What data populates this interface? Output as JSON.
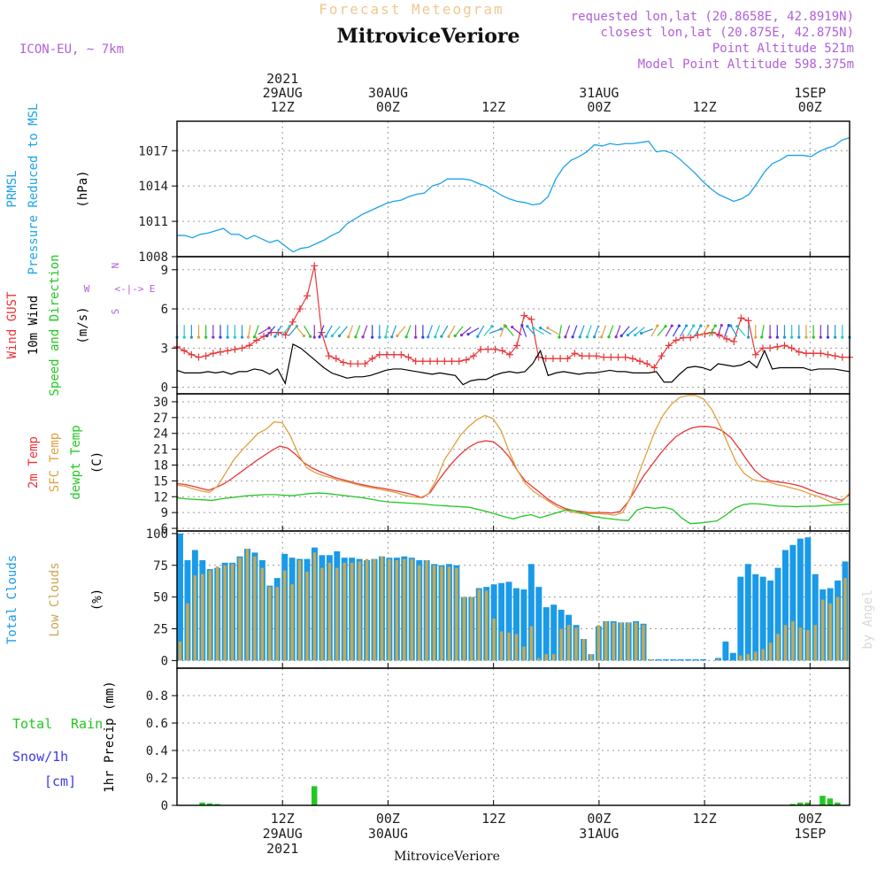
{
  "header": {
    "title_faded": "Forecast Meteogram",
    "title": "MitroviceVeriore",
    "model": "ICON-EU, ~ 7km",
    "requested": "requested lon,lat (20.8658E, 42.8919N)",
    "closest": "closest lon,lat (20.875E, 42.875N)",
    "altitude": "Point Altitude 521m",
    "model_altitude": "Model Point Altitude 598.375m",
    "bottom_title": "MitroviceVeriore",
    "watermark": "by Angel"
  },
  "colors": {
    "pressure": "#1aa3e8",
    "gust": "#e8363a",
    "wind10m": "#000000",
    "temp": "#e8363a",
    "sfc_temp": "#e0a040",
    "dewpt": "#22c822",
    "total_clouds": "#1a9ae8",
    "low_clouds": "#c8a850",
    "rain": "#22c822",
    "snow": "#3b3be8",
    "header_faded": "#f0c890",
    "header_info": "#b060d8"
  },
  "time_axis": {
    "top_ticks": [
      {
        "hour": 12,
        "lines": [
          "2021",
          "29AUG",
          "12Z"
        ]
      },
      {
        "hour": 24,
        "lines": [
          "30AUG",
          "00Z"
        ]
      },
      {
        "hour": 36,
        "lines": [
          "12Z"
        ]
      },
      {
        "hour": 48,
        "lines": [
          "31AUG",
          "00Z"
        ]
      },
      {
        "hour": 60,
        "lines": [
          "12Z"
        ]
      },
      {
        "hour": 72,
        "lines": [
          "1SEP",
          "00Z"
        ]
      }
    ],
    "bottom_ticks": [
      {
        "hour": 12,
        "lines": [
          "12Z",
          "29AUG",
          "2021"
        ]
      },
      {
        "hour": 24,
        "lines": [
          "00Z",
          "30AUG"
        ]
      },
      {
        "hour": 36,
        "lines": [
          "12Z"
        ]
      },
      {
        "hour": 48,
        "lines": [
          "00Z",
          "31AUG"
        ]
      },
      {
        "hour": 60,
        "lines": [
          "12Z"
        ]
      },
      {
        "hour": 72,
        "lines": [
          "00Z",
          "1SEP"
        ]
      }
    ],
    "range_hours": [
      0,
      76.5
    ],
    "step_hours": 1
  },
  "chart_data": [
    {
      "type": "line",
      "panel": "pressure",
      "ylabel_lines": [
        "PRMSL",
        "Pressure Reduced to MSL",
        "(hPa)"
      ],
      "ylim": [
        1008,
        1019.5
      ],
      "yticks": [
        1008,
        1011,
        1014,
        1017
      ],
      "series": [
        {
          "name": "PRMSL",
          "values": [
            1009.8,
            1009.8,
            1009.6,
            1009.9,
            1010.0,
            1010.2,
            1010.4,
            1009.9,
            1009.9,
            1009.5,
            1009.8,
            1009.5,
            1009.2,
            1009.4,
            1008.9,
            1008.4,
            1008.7,
            1008.8,
            1009.1,
            1009.4,
            1009.8,
            1010.1,
            1010.8,
            1011.2,
            1011.6,
            1011.9,
            1012.2,
            1012.5,
            1012.7,
            1012.8,
            1013.1,
            1013.3,
            1013.4,
            1014.0,
            1014.2,
            1014.6,
            1014.6,
            1014.6,
            1014.5,
            1014.2,
            1014.0,
            1013.6,
            1013.2,
            1012.9,
            1012.7,
            1012.6,
            1012.4,
            1012.5,
            1013.1,
            1014.6,
            1015.6,
            1016.2,
            1016.5,
            1016.9,
            1017.5,
            1017.4,
            1017.6,
            1017.5,
            1017.6,
            1017.6,
            1017.7,
            1017.8,
            1016.9,
            1017.0,
            1016.8,
            1016.3,
            1015.7,
            1015.1,
            1014.4,
            1013.8,
            1013.3,
            1013.0,
            1012.7,
            1012.9,
            1013.3,
            1014.2,
            1015.2,
            1015.9,
            1016.2,
            1016.6,
            1016.6,
            1016.6,
            1016.5,
            1016.9,
            1017.2,
            1017.4,
            1017.9,
            1018.1
          ]
        }
      ]
    },
    {
      "type": "line",
      "panel": "wind",
      "ylabel_lines": [
        "Wind GUST",
        "10m Wind",
        "Speed and Direction",
        "(m/s)"
      ],
      "ylim": [
        -0.5,
        10
      ],
      "yticks": [
        0,
        3,
        6,
        9
      ],
      "compass": {
        "n": "N",
        "s": "S",
        "e": "E",
        "w": "W",
        "arrows": "<-|->"
      },
      "series": [
        {
          "name": "Wind GUST",
          "values": [
            3.1,
            2.8,
            2.5,
            2.3,
            2.4,
            2.6,
            2.7,
            2.8,
            2.9,
            3.0,
            3.2,
            3.6,
            3.9,
            4.2,
            4.2,
            4.0,
            5.0,
            6.0,
            7.0,
            9.3,
            4.2,
            2.4,
            2.2,
            1.9,
            1.8,
            1.8,
            1.8,
            2.2,
            2.5,
            2.5,
            2.5,
            2.5,
            2.3,
            2.0,
            2.0,
            2.0,
            2.0,
            2.0,
            2.0,
            2.0,
            2.1,
            2.4,
            2.9,
            2.9,
            2.9,
            2.8,
            2.5,
            3.2,
            5.5,
            5.2,
            2.3,
            2.2,
            2.2,
            2.2,
            2.2,
            2.6,
            2.4,
            2.4,
            2.4,
            2.3,
            2.3,
            2.3,
            2.3,
            2.2,
            2.0,
            1.8,
            1.5,
            2.4,
            3.2,
            3.6,
            3.8,
            3.8,
            4.0,
            4.1,
            4.2,
            4.0,
            3.7,
            3.5,
            5.3,
            5.1,
            2.5,
            3.0,
            3.0,
            3.1,
            3.2,
            3.0,
            2.7,
            2.6,
            2.6,
            2.6,
            2.5,
            2.4,
            2.3,
            2.3
          ]
        },
        {
          "name": "10m Wind",
          "values": [
            1.3,
            1.1,
            1.1,
            1.1,
            1.2,
            1.1,
            1.2,
            1.0,
            1.2,
            1.2,
            1.4,
            1.3,
            1.0,
            1.4,
            0.3,
            3.3,
            3.0,
            2.5,
            2.0,
            1.5,
            1.1,
            0.9,
            0.7,
            0.8,
            0.8,
            0.9,
            1.1,
            1.3,
            1.4,
            1.4,
            1.3,
            1.2,
            1.1,
            1.0,
            1.1,
            1.0,
            0.9,
            0.2,
            0.5,
            0.6,
            0.6,
            0.9,
            1.1,
            1.2,
            1.1,
            1.2,
            1.8,
            2.8,
            0.9,
            1.1,
            1.2,
            1.1,
            1.0,
            1.1,
            1.1,
            1.2,
            1.3,
            1.2,
            1.2,
            1.1,
            1.1,
            1.1,
            1.2,
            0.4,
            0.4,
            1.0,
            1.5,
            1.6,
            1.5,
            1.3,
            1.8,
            1.7,
            1.6,
            1.7,
            2.0,
            1.5,
            2.8,
            1.4,
            1.5,
            1.5,
            1.5,
            1.5,
            1.3,
            1.4,
            1.4,
            1.4,
            1.3,
            1.2
          ]
        },
        {
          "name": "Direction",
          "values": [
            180,
            180,
            180,
            180,
            180,
            180,
            180,
            180,
            180,
            180,
            190,
            200,
            60,
            220,
            210,
            40,
            40,
            140,
            150,
            180,
            200,
            210,
            220,
            220,
            200,
            200,
            200,
            180,
            180,
            190,
            200,
            220,
            200,
            180,
            180,
            200,
            200,
            210,
            210,
            220,
            230,
            240,
            210,
            40,
            70,
            20,
            320,
            310,
            340,
            320,
            300,
            300,
            300,
            190,
            200,
            200,
            200,
            200,
            200,
            200,
            200,
            200,
            220,
            230,
            230,
            250,
            30,
            40,
            30,
            30,
            30,
            30,
            30,
            30,
            30,
            20,
            20,
            330,
            320,
            180,
            180,
            190,
            180,
            180,
            180,
            180,
            180,
            180,
            180,
            180,
            180,
            180,
            180,
            180
          ]
        }
      ]
    },
    {
      "type": "line",
      "panel": "temperature",
      "ylabel_lines": [
        "2m Temp",
        "SFC Temp",
        "dewpt Temp",
        "(C)"
      ],
      "ylim": [
        5.5,
        31.5
      ],
      "yticks": [
        6,
        9,
        12,
        15,
        18,
        21,
        24,
        27,
        30
      ],
      "series": [
        {
          "name": "2m Temp",
          "values": [
            14.5,
            14.3,
            14.0,
            13.6,
            13.2,
            13.8,
            14.5,
            15.5,
            16.6,
            17.7,
            18.8,
            19.8,
            20.8,
            21.6,
            21.2,
            20.0,
            18.5,
            17.5,
            16.8,
            16.2,
            15.6,
            15.2,
            14.8,
            14.4,
            14.1,
            13.8,
            13.6,
            13.3,
            13.0,
            12.7,
            12.3,
            11.8,
            12.8,
            15.0,
            17.0,
            18.8,
            20.3,
            21.5,
            22.3,
            22.6,
            22.4,
            21.2,
            19.5,
            17.0,
            15.0,
            13.8,
            12.6,
            11.4,
            10.5,
            9.8,
            9.4,
            9.2,
            9.0,
            9.0,
            9.0,
            8.9,
            9.2,
            11.0,
            13.5,
            16.0,
            18.0,
            20.0,
            21.8,
            23.3,
            24.3,
            25.0,
            25.3,
            25.3,
            25.1,
            24.4,
            23.2,
            21.2,
            19.0,
            17.0,
            15.7,
            15.0,
            14.8,
            14.6,
            14.3,
            13.9,
            13.3,
            12.7,
            12.3,
            11.8,
            11.3,
            12.4
          ]
        },
        {
          "name": "SFC Temp",
          "values": [
            14.2,
            14.0,
            13.5,
            13.1,
            12.8,
            14.0,
            16.5,
            19.0,
            20.8,
            22.4,
            24.0,
            24.8,
            26.2,
            26.0,
            23.5,
            20.0,
            17.5,
            16.6,
            16.0,
            15.6,
            15.1,
            14.8,
            14.4,
            14.0,
            13.7,
            13.4,
            13.1,
            12.8,
            12.3,
            12.0,
            11.8,
            12.5,
            15.2,
            19.0,
            21.3,
            23.7,
            25.3,
            26.6,
            27.4,
            26.8,
            24.5,
            20.5,
            17.0,
            14.5,
            13.0,
            12.0,
            11.0,
            10.0,
            9.4,
            9.0,
            8.8,
            8.8,
            8.8,
            8.7,
            8.5,
            9.0,
            12.0,
            16.5,
            20.5,
            24.5,
            27.5,
            29.5,
            30.8,
            31.2,
            31.2,
            30.5,
            28.5,
            25.5,
            22.0,
            18.5,
            16.4,
            15.3,
            14.9,
            14.8,
            14.3,
            14.0,
            13.6,
            13.2,
            12.6,
            12.1,
            11.5,
            10.8,
            11.0,
            12.7
          ]
        },
        {
          "name": "dewpt Temp",
          "values": [
            11.8,
            11.6,
            11.5,
            11.4,
            11.3,
            11.6,
            11.8,
            12.0,
            12.2,
            12.3,
            12.4,
            12.4,
            12.3,
            12.2,
            12.4,
            12.6,
            12.7,
            12.6,
            12.4,
            12.2,
            12.0,
            11.8,
            11.5,
            11.2,
            11.0,
            10.9,
            10.8,
            10.7,
            10.6,
            10.4,
            10.3,
            10.2,
            10.1,
            10.0,
            9.6,
            9.2,
            8.7,
            8.2,
            7.8,
            8.3,
            8.6,
            8.0,
            8.5,
            9.0,
            9.5,
            9.3,
            8.8,
            8.3,
            8.0,
            7.8,
            7.6,
            7.5,
            9.5,
            10.0,
            9.8,
            10.0,
            9.6,
            8.0,
            6.9,
            7.0,
            7.2,
            7.4,
            8.5,
            9.8,
            10.5,
            10.7,
            10.6,
            10.4,
            10.2,
            10.2,
            10.1,
            10.2,
            10.2,
            10.3,
            10.4,
            10.5,
            10.6
          ]
        }
      ]
    },
    {
      "type": "bar",
      "panel": "clouds",
      "ylabel_lines": [
        "Total Clouds",
        "Low Clouds",
        "(%)"
      ],
      "ylim": [
        -6,
        102
      ],
      "yticks": [
        0,
        25,
        50,
        75,
        100
      ],
      "series": [
        {
          "name": "Total Clouds",
          "values": [
            100,
            79,
            87,
            79,
            72,
            73,
            77,
            77,
            82,
            88,
            85,
            79,
            59,
            65,
            84,
            81,
            80,
            80,
            89,
            83,
            83,
            86,
            81,
            81,
            80,
            79,
            80,
            82,
            81,
            81,
            82,
            81,
            79,
            79,
            76,
            75,
            76,
            75,
            50,
            50,
            57,
            58,
            60,
            61,
            62,
            57,
            56,
            76,
            58,
            42,
            44,
            40,
            36,
            28,
            17,
            5,
            27,
            31,
            31,
            30,
            30,
            31,
            29,
            1,
            1,
            1,
            1,
            1,
            1,
            1,
            1,
            0,
            2,
            15,
            6,
            66,
            76,
            68,
            66,
            63,
            73,
            87,
            91,
            96,
            97,
            68,
            56,
            57,
            63,
            78
          ]
        },
        {
          "name": "Low Clouds",
          "values": [
            15,
            45,
            67,
            68,
            71,
            74,
            75,
            76,
            81,
            88,
            82,
            73,
            58,
            58,
            71,
            60,
            79,
            70,
            85,
            73,
            77,
            73,
            77,
            77,
            78,
            80,
            80,
            82,
            80,
            79,
            80,
            80,
            75,
            79,
            75,
            74,
            74,
            73,
            50,
            50,
            56,
            55,
            33,
            23,
            22,
            21,
            11,
            27,
            2,
            5,
            5,
            25,
            28,
            26,
            17,
            5,
            28,
            31,
            30,
            30,
            30,
            30,
            28,
            1,
            0,
            0,
            0,
            0,
            0,
            0,
            0,
            0,
            1,
            0,
            0,
            4,
            5,
            7,
            9,
            14,
            21,
            28,
            31,
            26,
            24,
            28,
            48,
            45,
            50,
            65
          ]
        }
      ]
    },
    {
      "type": "bar",
      "panel": "precip",
      "ylabel_lines": [
        "1hr Precip (mm)"
      ],
      "legend_lines": [
        [
          "Total",
          "Rain"
        ],
        [
          "Snow/1h"
        ],
        [
          "[cm]"
        ]
      ],
      "ylim": [
        0,
        1.0
      ],
      "yticks": [
        0,
        0.2,
        0.4,
        0.6,
        0.8
      ],
      "series": [
        {
          "name": "Total Rain",
          "values": [
            0,
            0,
            0,
            0.02,
            0.015,
            0.01,
            0,
            0,
            0,
            0,
            0,
            0,
            0,
            0,
            0,
            0,
            0,
            0,
            0.14,
            0,
            0,
            0,
            0,
            0,
            0,
            0,
            0,
            0,
            0,
            0,
            0,
            0,
            0,
            0,
            0,
            0,
            0,
            0,
            0,
            0,
            0,
            0,
            0,
            0,
            0,
            0,
            0,
            0,
            0,
            0,
            0,
            0,
            0,
            0,
            0,
            0,
            0,
            0,
            0,
            0,
            0,
            0,
            0,
            0,
            0,
            0,
            0,
            0,
            0,
            0,
            0,
            0,
            0,
            0,
            0,
            0,
            0,
            0,
            0,
            0,
            0,
            0,
            0.01,
            0.02,
            0.02,
            0,
            0.07,
            0.05,
            0.02,
            0
          ]
        }
      ]
    }
  ]
}
